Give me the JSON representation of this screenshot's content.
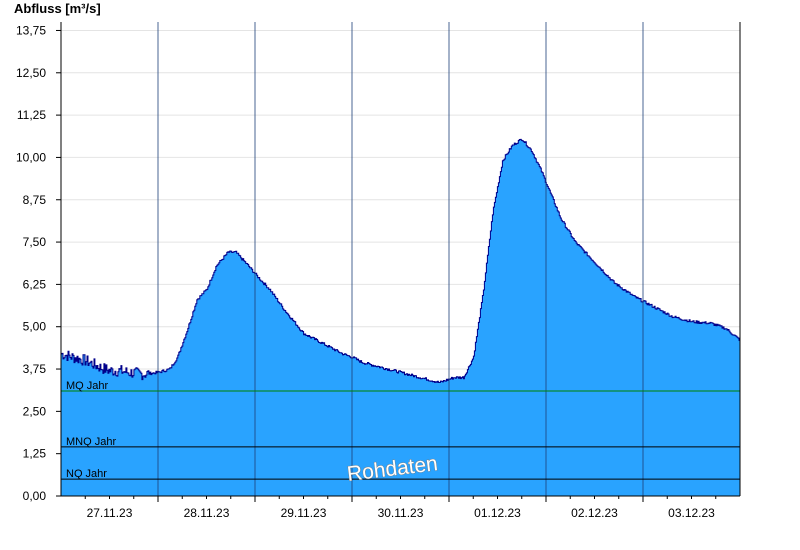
{
  "chart_data": {
    "type": "area",
    "ylabel": "Abfluss [m³/s]",
    "ylim": [
      0,
      14.0
    ],
    "y_ticks": [
      "0,00",
      "1,25",
      "2,50",
      "3,75",
      "5,00",
      "6,25",
      "7,50",
      "8,75",
      "10,00",
      "11,25",
      "12,50",
      "13,75"
    ],
    "y_tick_values": [
      0,
      1.25,
      2.5,
      3.75,
      5.0,
      6.25,
      7.5,
      8.75,
      10.0,
      11.25,
      12.5,
      13.75
    ],
    "x_ticks": [
      "27.11.23",
      "28.11.23",
      "29.11.23",
      "30.11.23",
      "01.12.23",
      "02.12.23",
      "03.12.23"
    ],
    "xlim_days": [
      0,
      7.0
    ],
    "grid": true,
    "fill_color": "#29a3ff",
    "line_color": "#00008b",
    "series": [
      {
        "x_days": [
          0,
          0.12,
          0.25,
          0.4,
          0.5,
          0.6,
          0.7,
          0.85,
          1.0,
          1.12,
          1.2,
          1.3,
          1.4,
          1.5,
          1.6,
          1.72,
          1.8,
          1.93,
          2.05,
          2.15,
          2.3,
          2.5,
          2.7,
          2.9,
          3.0,
          3.1,
          3.3,
          3.5,
          3.7,
          3.9,
          4.05,
          4.15,
          4.25,
          4.35,
          4.45,
          4.55,
          4.65,
          4.75,
          4.85,
          4.95,
          5.05,
          5.15,
          5.3,
          5.5,
          5.7,
          5.9,
          6.1,
          6.3,
          6.5,
          6.7,
          6.85,
          7.0
        ],
        "values": [
          4.2,
          4.1,
          4.0,
          3.8,
          3.7,
          3.7,
          3.65,
          3.6,
          3.65,
          3.75,
          4.1,
          4.9,
          5.8,
          6.1,
          6.8,
          7.2,
          7.2,
          6.8,
          6.4,
          6.1,
          5.5,
          4.8,
          4.5,
          4.2,
          4.1,
          3.95,
          3.8,
          3.65,
          3.5,
          3.35,
          3.5,
          3.5,
          4.1,
          6.0,
          8.4,
          9.9,
          10.35,
          10.55,
          10.2,
          9.6,
          8.9,
          8.2,
          7.5,
          6.9,
          6.3,
          5.9,
          5.6,
          5.3,
          5.15,
          5.1,
          4.95,
          4.6
        ]
      }
    ],
    "reference_lines": [
      {
        "label": "MQ Jahr",
        "value": 3.1,
        "color": "#008000"
      },
      {
        "label": "MNQ Jahr",
        "value": 1.45,
        "color": "#000000"
      },
      {
        "label": "NQ Jahr",
        "value": 0.5,
        "color": "#000000"
      }
    ],
    "annotation": "Rohdaten"
  }
}
